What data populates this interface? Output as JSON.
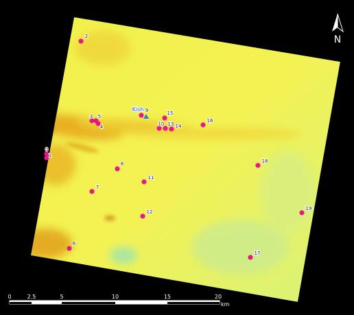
{
  "map": {
    "place": "Kish",
    "points": [
      "2",
      "3",
      "5",
      "4",
      "0",
      "1",
      "9",
      "15",
      "10",
      "13",
      "14",
      "16",
      "8",
      "18",
      "11",
      "7",
      "12",
      "19",
      "6",
      "17"
    ],
    "north": "N",
    "scale": {
      "ticks": [
        "0",
        "2.5",
        "5",
        "10",
        "15",
        "20"
      ],
      "unit": "km"
    }
  }
}
